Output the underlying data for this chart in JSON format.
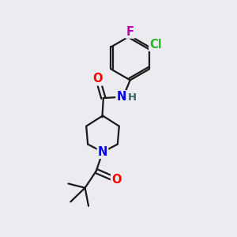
{
  "background_color": "#ebebf0",
  "bond_color": "#1a1a1a",
  "atom_colors": {
    "O": "#ff0000",
    "N": "#0000ee",
    "Cl": "#22bb22",
    "F": "#bb00bb",
    "H": "#336666",
    "C": "#1a1a1a"
  },
  "figsize": [
    3.0,
    3.0
  ],
  "dpi": 100,
  "lw": 1.6,
  "fs": 10.5
}
